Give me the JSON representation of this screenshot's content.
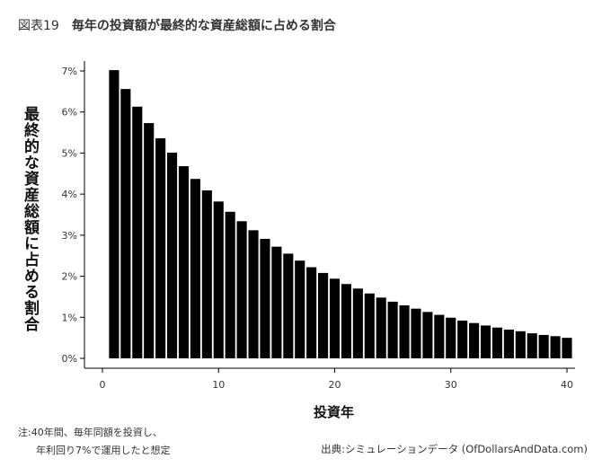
{
  "figure": {
    "number": "図表19",
    "title": "毎年の投資額が最終的な資産総額に占める割合",
    "note_line1": "注:40年間、毎年同額を投資し、",
    "note_line2": "年利回り7%で運用したと想定",
    "source": "出典:シミュレーションデータ (OfDollarsAndData.com)"
  },
  "chart_data": {
    "type": "bar",
    "xlabel": "投資年",
    "ylabel": "最終的な資産総額に占める割合",
    "x": [
      1,
      2,
      3,
      4,
      5,
      6,
      7,
      8,
      9,
      10,
      11,
      12,
      13,
      14,
      15,
      16,
      17,
      18,
      19,
      20,
      21,
      22,
      23,
      24,
      25,
      26,
      27,
      28,
      29,
      30,
      31,
      32,
      33,
      34,
      35,
      36,
      37,
      38,
      39,
      40
    ],
    "values": [
      7.02,
      6.56,
      6.13,
      5.73,
      5.36,
      5.01,
      4.68,
      4.37,
      4.09,
      3.82,
      3.57,
      3.34,
      3.12,
      2.91,
      2.72,
      2.55,
      2.38,
      2.22,
      2.08,
      1.94,
      1.81,
      1.7,
      1.58,
      1.48,
      1.38,
      1.29,
      1.21,
      1.13,
      1.06,
      0.99,
      0.92,
      0.86,
      0.8,
      0.75,
      0.7,
      0.66,
      0.61,
      0.57,
      0.54,
      0.5
    ],
    "xlim": [
      0,
      40.5
    ],
    "ylim": [
      0,
      7
    ],
    "x_ticks": [
      0,
      10,
      20,
      30,
      40
    ],
    "y_ticks": [
      0,
      1,
      2,
      3,
      4,
      5,
      6,
      7
    ],
    "y_tick_labels": [
      "0%",
      "1%",
      "2%",
      "3%",
      "4%",
      "5%",
      "6%",
      "7%"
    ],
    "bar_color": "#000000",
    "grid": false
  }
}
